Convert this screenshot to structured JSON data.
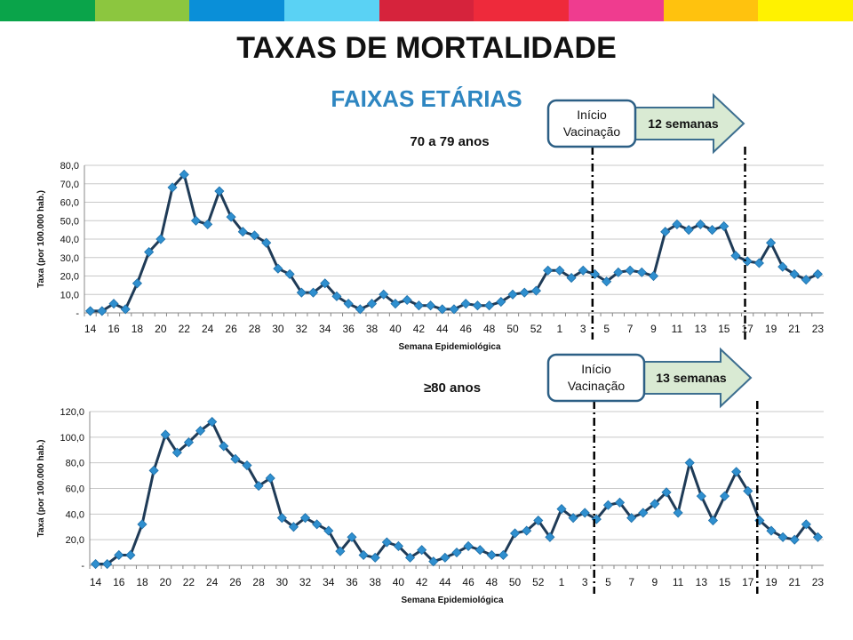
{
  "stripe_colors": [
    "#0aa44a",
    "#8cc63f",
    "#0a8fd8",
    "#5ad2f4",
    "#d6233c",
    "#ee2a3b",
    "#ef3c8f",
    "#ffc20e",
    "#fff200"
  ],
  "title": "TAXAS DE MORTALIDADE",
  "subtitle": "FAIXAS ETÁRIAS",
  "chart_data": [
    {
      "type": "line",
      "title": "70 a 79 anos",
      "xlabel": "Semana Epidemiológica",
      "ylabel": "Taxa  (por 100.000 hab.)",
      "ylim": [
        0,
        80
      ],
      "yticks": [
        "-",
        "10,0",
        "20,0",
        "30,0",
        "40,0",
        "50,0",
        "60,0",
        "70,0",
        "80,0"
      ],
      "grid": true,
      "categories": [
        "14",
        "15",
        "16",
        "17",
        "18",
        "19",
        "20",
        "21",
        "22",
        "23",
        "24",
        "25",
        "26",
        "27",
        "28",
        "29",
        "30",
        "31",
        "32",
        "33",
        "34",
        "35",
        "36",
        "37",
        "38",
        "39",
        "40",
        "41",
        "42",
        "43",
        "44",
        "45",
        "46",
        "47",
        "48",
        "49",
        "50",
        "51",
        "52",
        "53",
        "1",
        "2",
        "3",
        "4",
        "5",
        "6",
        "7",
        "8",
        "9",
        "10",
        "11",
        "12",
        "13",
        "14",
        "15",
        "16",
        "17",
        "18",
        "19",
        "20",
        "21",
        "22",
        "23"
      ],
      "tick_labels": [
        "14",
        "16",
        "18",
        "20",
        "22",
        "24",
        "26",
        "28",
        "30",
        "32",
        "34",
        "36",
        "38",
        "40",
        "42",
        "44",
        "46",
        "48",
        "50",
        "52",
        "1",
        "3",
        "5",
        "7",
        "9",
        "11",
        "13",
        "15",
        "17",
        "19",
        "21",
        "23"
      ],
      "values": [
        1,
        1,
        5,
        2,
        16,
        33,
        40,
        68,
        75,
        50,
        48,
        66,
        52,
        44,
        42,
        38,
        24,
        21,
        11,
        11,
        16,
        9,
        5,
        2,
        5,
        10,
        5,
        7,
        4,
        4,
        2,
        2,
        5,
        4,
        4,
        6,
        10,
        11,
        12,
        23,
        23,
        19,
        23,
        21,
        17,
        22,
        23,
        22,
        20,
        44,
        48,
        45,
        48,
        45,
        47,
        31,
        28,
        27,
        38,
        25,
        21,
        18,
        21
      ],
      "series_color": "#2f8fcf",
      "line_color": "#1f3b57",
      "annotation": {
        "box": "Início\nVacinação",
        "arrow": "12 semanas",
        "start_week": "4",
        "start_index": 42.8,
        "end_index": 55.8
      }
    },
    {
      "type": "line",
      "title": "≥80 anos",
      "xlabel": "Semana Epidemiológica",
      "ylabel": "Taxa  (por 100.000 hab.)",
      "ylim": [
        0,
        120
      ],
      "yticks": [
        "-",
        "20,0",
        "40,0",
        "60,0",
        "80,0",
        "100,0",
        "120,0"
      ],
      "grid": true,
      "categories": [
        "14",
        "15",
        "16",
        "17",
        "18",
        "19",
        "20",
        "21",
        "22",
        "23",
        "24",
        "25",
        "26",
        "27",
        "28",
        "29",
        "30",
        "31",
        "32",
        "33",
        "34",
        "35",
        "36",
        "37",
        "38",
        "39",
        "40",
        "41",
        "42",
        "43",
        "44",
        "45",
        "46",
        "47",
        "48",
        "49",
        "50",
        "51",
        "52",
        "53",
        "1",
        "2",
        "3",
        "4",
        "5",
        "6",
        "7",
        "8",
        "9",
        "10",
        "11",
        "12",
        "13",
        "14",
        "15",
        "16",
        "17",
        "18",
        "19",
        "20",
        "21",
        "22",
        "23"
      ],
      "tick_labels": [
        "14",
        "16",
        "18",
        "20",
        "22",
        "24",
        "26",
        "28",
        "30",
        "32",
        "34",
        "36",
        "38",
        "40",
        "42",
        "44",
        "46",
        "48",
        "50",
        "52",
        "1",
        "3",
        "5",
        "7",
        "9",
        "11",
        "13",
        "15",
        "17",
        "19",
        "21",
        "23"
      ],
      "values": [
        1,
        1,
        8,
        8,
        32,
        74,
        102,
        88,
        96,
        105,
        112,
        93,
        83,
        78,
        62,
        68,
        37,
        30,
        37,
        32,
        27,
        11,
        22,
        8,
        6,
        18,
        15,
        6,
        12,
        3,
        6,
        10,
        15,
        12,
        8,
        8,
        25,
        27,
        35,
        22,
        44,
        37,
        41,
        36,
        47,
        49,
        37,
        41,
        48,
        57,
        41,
        80,
        54,
        35,
        54,
        73,
        58,
        35,
        27,
        22,
        20,
        32,
        22
      ],
      "series_color": "#2f8fcf",
      "line_color": "#1f3b57",
      "annotation": {
        "box": "Início\nVacinação",
        "arrow": "13 semanas",
        "start_week": "4",
        "start_index": 42.8,
        "end_index": 56.8
      }
    }
  ]
}
